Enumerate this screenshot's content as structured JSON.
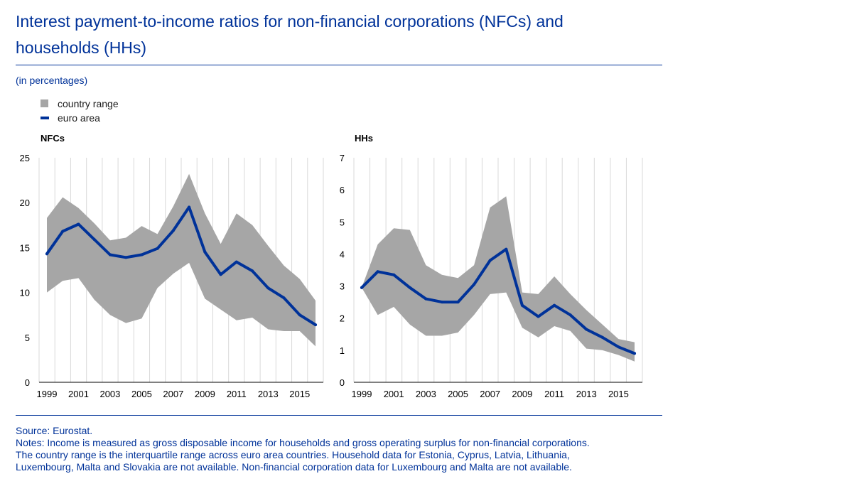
{
  "header": {
    "title_line1": "Interest payment-to-income ratios for non-financial corporations (NFCs) and",
    "title_line2": "households (HHs)",
    "subtitle": "(in percentages)"
  },
  "legend": {
    "range_label": "country range",
    "line_label": "euro area"
  },
  "colors": {
    "range": "#a6a6a6",
    "line": "#003299",
    "grid": "#d9d9d9",
    "text": "#003299"
  },
  "chart_data": [
    {
      "type": "area",
      "panel_label": "NFCs",
      "x": [
        1999,
        2000,
        2001,
        2002,
        2003,
        2004,
        2005,
        2006,
        2007,
        2008,
        2009,
        2010,
        2011,
        2012,
        2013,
        2014,
        2015,
        2016
      ],
      "xticks": [
        "1999",
        "2001",
        "2003",
        "2005",
        "2007",
        "2009",
        "2011",
        "2013",
        "2015"
      ],
      "yticks": [
        "0",
        "5",
        "10",
        "15",
        "20",
        "25"
      ],
      "ylim": [
        0,
        25
      ],
      "grid": "vertical",
      "range_low": [
        10.0,
        11.3,
        11.6,
        9.2,
        7.5,
        6.6,
        7.1,
        10.5,
        12.1,
        13.3,
        9.3,
        8.1,
        6.9,
        7.2,
        5.9,
        5.7,
        5.7,
        4.0
      ],
      "range_high": [
        18.3,
        20.6,
        19.4,
        17.7,
        15.8,
        16.1,
        17.4,
        16.5,
        19.6,
        23.2,
        18.8,
        15.4,
        18.8,
        17.5,
        15.2,
        13.0,
        11.5,
        9.1
      ],
      "euro_area": [
        14.3,
        16.8,
        17.6,
        15.9,
        14.2,
        13.9,
        14.2,
        14.9,
        16.9,
        19.5,
        14.5,
        12.0,
        13.4,
        12.4,
        10.5,
        9.4,
        7.5,
        6.4
      ]
    },
    {
      "type": "area",
      "panel_label": "HHs",
      "x": [
        1999,
        2000,
        2001,
        2002,
        2003,
        2004,
        2005,
        2006,
        2007,
        2008,
        2009,
        2010,
        2011,
        2012,
        2013,
        2014,
        2015,
        2016
      ],
      "xticks": [
        "1999",
        "2001",
        "2003",
        "2005",
        "2007",
        "2009",
        "2011",
        "2013",
        "2015"
      ],
      "yticks": [
        "0",
        "1",
        "2",
        "3",
        "4",
        "5",
        "6",
        "7"
      ],
      "ylim": [
        0,
        7
      ],
      "grid": "vertical",
      "range_low": [
        2.95,
        2.1,
        2.35,
        1.8,
        1.45,
        1.45,
        1.55,
        2.1,
        2.75,
        2.8,
        1.7,
        1.4,
        1.75,
        1.6,
        1.05,
        1.0,
        0.85,
        0.65
      ],
      "range_high": [
        2.95,
        4.3,
        4.8,
        4.75,
        3.65,
        3.35,
        3.25,
        3.65,
        5.45,
        5.8,
        2.8,
        2.75,
        3.3,
        2.75,
        2.25,
        1.8,
        1.35,
        1.25
      ],
      "euro_area": [
        2.95,
        3.45,
        3.35,
        2.95,
        2.6,
        2.5,
        2.5,
        3.05,
        3.8,
        4.15,
        2.4,
        2.05,
        2.4,
        2.1,
        1.65,
        1.4,
        1.1,
        0.9
      ]
    }
  ],
  "footer": {
    "source": "Source: Eurostat.",
    "notes_line1": "Notes: Income is measured as gross disposable income for households and gross operating surplus for non-financial corporations.",
    "notes_line2": "The country range is the interquartile range across euro area countries. Household data for Estonia, Cyprus, Latvia, Lithuania,",
    "notes_line3": "Luxembourg, Malta and Slovakia are not available. Non-financial corporation data for Luxembourg and Malta are not available."
  }
}
